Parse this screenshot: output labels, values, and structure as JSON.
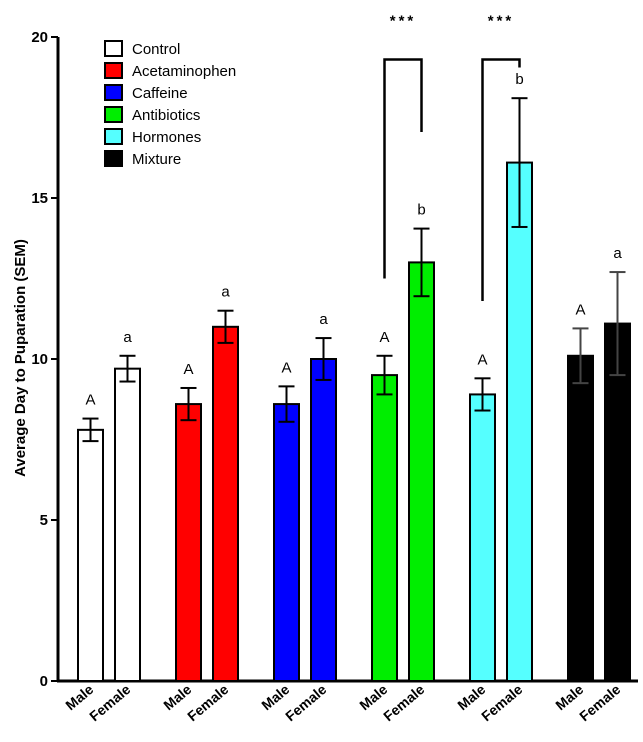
{
  "chart_data": {
    "type": "bar",
    "title": "",
    "ylabel": "Average Day to Puparation (SEM)",
    "ylim": [
      0,
      20
    ],
    "yticks": [
      0,
      5,
      10,
      15,
      20
    ],
    "grid": false,
    "legend_placement": "top-left",
    "groups": [
      {
        "name": "Control",
        "color": "#ffffff",
        "bars": [
          {
            "sex": "Male",
            "value": 7.8,
            "sem": 0.35,
            "letter": "A"
          },
          {
            "sex": "Female",
            "value": 9.7,
            "sem": 0.4,
            "letter": "a"
          }
        ]
      },
      {
        "name": "Acetaminophen",
        "color": "#ff0000",
        "bars": [
          {
            "sex": "Male",
            "value": 8.6,
            "sem": 0.5,
            "letter": "A"
          },
          {
            "sex": "Female",
            "value": 11.0,
            "sem": 0.5,
            "letter": "a"
          }
        ]
      },
      {
        "name": "Caffeine",
        "color": "#0000ff",
        "bars": [
          {
            "sex": "Male",
            "value": 8.6,
            "sem": 0.55,
            "letter": "A"
          },
          {
            "sex": "Female",
            "value": 10.0,
            "sem": 0.65,
            "letter": "a"
          }
        ]
      },
      {
        "name": "Antibiotics",
        "color": "#00ee00",
        "bars": [
          {
            "sex": "Male",
            "value": 9.5,
            "sem": 0.6,
            "letter": "A"
          },
          {
            "sex": "Female",
            "value": 13.0,
            "sem": 1.05,
            "letter": "b"
          }
        ]
      },
      {
        "name": "Hormones",
        "color": "#55ffff",
        "bars": [
          {
            "sex": "Male",
            "value": 8.9,
            "sem": 0.5,
            "letter": "A"
          },
          {
            "sex": "Female",
            "value": 16.1,
            "sem": 2.0,
            "letter": "b"
          }
        ]
      },
      {
        "name": "Mixture",
        "color": "#000000",
        "bars": [
          {
            "sex": "Male",
            "value": 10.1,
            "sem": 0.85,
            "letter": "A"
          },
          {
            "sex": "Female",
            "value": 11.1,
            "sem": 1.6,
            "letter": "a"
          }
        ]
      }
    ],
    "legend": [
      "Control",
      "Acetaminophen",
      "Caffeine",
      "Antibiotics",
      "Hormones",
      "Mixture"
    ],
    "significance": [
      {
        "group": "Antibiotics",
        "label": "***",
        "bracket_top": 19.3
      },
      {
        "group": "Hormones",
        "label": "***",
        "bracket_top": 19.3
      }
    ]
  }
}
